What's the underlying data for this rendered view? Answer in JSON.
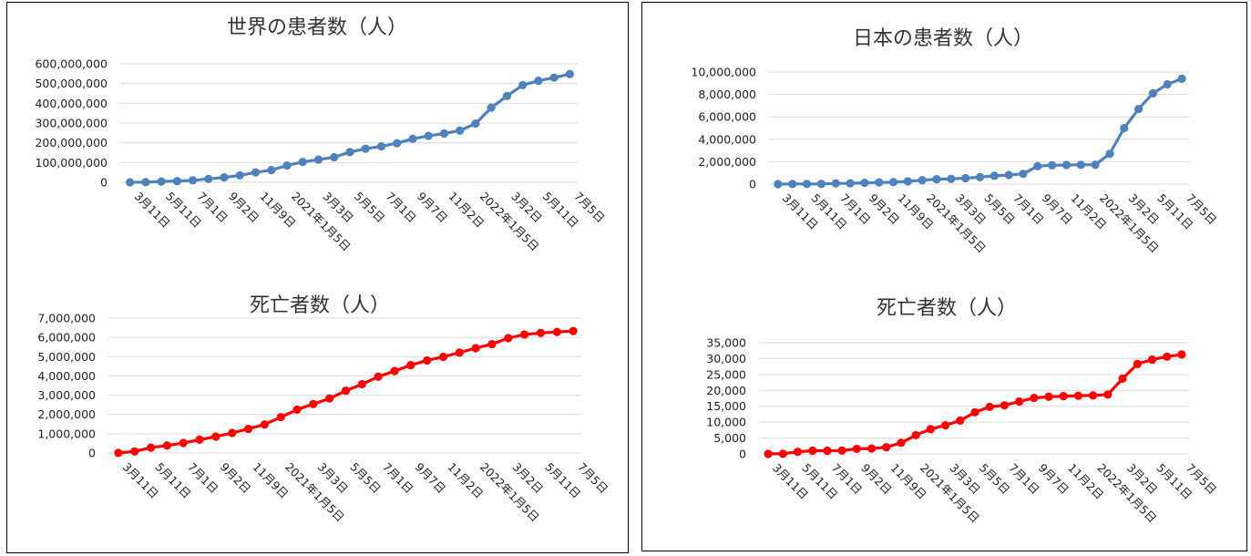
{
  "panels": [
    {
      "charts": [
        {
          "type": "line",
          "title": "世界の患者数（人）",
          "color": "#4F81BD",
          "ylim": [
            0,
            600000000
          ],
          "yticks": [
            "0",
            "100,000,000",
            "200,000,000",
            "300,000,000",
            "400,000,000",
            "500,000,000",
            "600,000,000"
          ],
          "xlabels": [
            "3月11日",
            "5月11日",
            "7月1日",
            "9月2日",
            "11月9日",
            "2021年1月5日",
            "3月3日",
            "5月5日",
            "7月1日",
            "9月7日",
            "11月2日",
            "2022年1月5日",
            "3月2日",
            "5月11日",
            "7月5日"
          ],
          "values": [
            120000,
            800000,
            4000000,
            6000000,
            10000000,
            17000000,
            25000000,
            35000000,
            50000000,
            62000000,
            85000000,
            103000000,
            115000000,
            127000000,
            153000000,
            170000000,
            182000000,
            198000000,
            220000000,
            235000000,
            247000000,
            262000000,
            297000000,
            378000000,
            437000000,
            492000000,
            514000000,
            530000000,
            548000000
          ]
        },
        {
          "type": "line",
          "title": "死亡者数（人）",
          "color": "#FF0000",
          "ylim": [
            0,
            7000000
          ],
          "yticks": [
            "0",
            "1,000,000",
            "2,000,000",
            "3,000,000",
            "4,000,000",
            "5,000,000",
            "6,000,000",
            "7,000,000"
          ],
          "xlabels": [
            "3月11日",
            "5月11日",
            "7月1日",
            "9月2日",
            "11月9日",
            "2021年1月5日",
            "3月3日",
            "5月5日",
            "7月1日",
            "9月7日",
            "11月2日",
            "2022年1月5日",
            "3月2日",
            "5月11日",
            "7月5日"
          ],
          "values": [
            4300,
            80000,
            280000,
            390000,
            520000,
            690000,
            850000,
            1040000,
            1250000,
            1480000,
            1860000,
            2250000,
            2540000,
            2830000,
            3230000,
            3570000,
            3960000,
            4250000,
            4560000,
            4800000,
            4990000,
            5210000,
            5440000,
            5650000,
            5960000,
            6150000,
            6230000,
            6280000,
            6330000
          ]
        }
      ]
    },
    {
      "charts": [
        {
          "type": "line",
          "title": "日本の患者数（人）",
          "color": "#4F81BD",
          "ylim": [
            0,
            10000000
          ],
          "yticks": [
            "0",
            "2,000,000",
            "4,000,000",
            "6,000,000",
            "8,000,000",
            "10,000,000"
          ],
          "xlabels": [
            "3月11日",
            "5月11日",
            "7月1日",
            "9月2日",
            "11月9日",
            "2021年1月5日",
            "3月3日",
            "5月5日",
            "7月1日",
            "9月7日",
            "11月2日",
            "2022年1月5日",
            "3月2日",
            "5月11日",
            "7月5日"
          ],
          "values": [
            600,
            15000,
            16500,
            19000,
            68000,
            75000,
            115000,
            150000,
            180000,
            240000,
            350000,
            440000,
            470000,
            530000,
            620000,
            740000,
            810000,
            920000,
            1600000,
            1680000,
            1710000,
            1720000,
            1730000,
            2700000,
            5000000,
            6700000,
            8100000,
            8900000,
            9400000
          ]
        },
        {
          "type": "line",
          "title": "死亡者数（人）",
          "color": "#FF0000",
          "ylim": [
            0,
            35000
          ],
          "yticks": [
            "0",
            "5,000",
            "10,000",
            "15,000",
            "20,000",
            "25,000",
            "30,000",
            "35,000"
          ],
          "xlabels": [
            "3月11日",
            "5月11日",
            "7月1日",
            "9月2日",
            "11月9日",
            "2021年1月5日",
            "3月3日",
            "5月5日",
            "7月1日",
            "9月7日",
            "11月2日",
            "2022年1月5日",
            "3月2日",
            "5月11日",
            "7月5日"
          ],
          "values": [
            15,
            50,
            650,
            1000,
            1000,
            1050,
            1600,
            1700,
            2100,
            3500,
            5900,
            7800,
            9000,
            10500,
            13100,
            14800,
            15300,
            16500,
            17600,
            18000,
            18200,
            18300,
            18400,
            18700,
            23700,
            28300,
            29700,
            30600,
            31300
          ]
        }
      ]
    }
  ]
}
